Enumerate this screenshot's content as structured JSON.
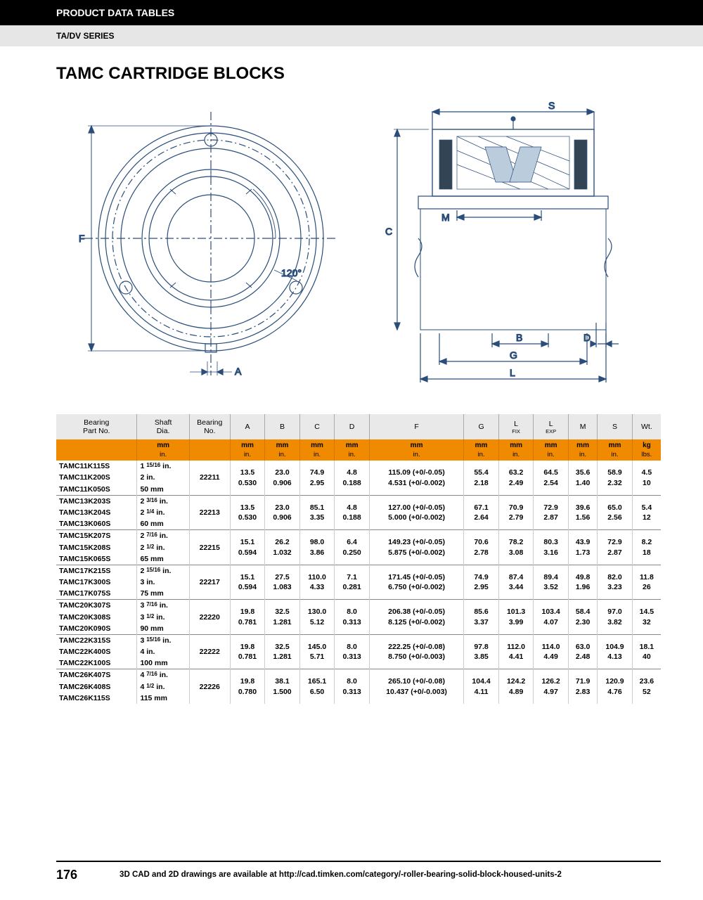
{
  "header": "PRODUCT DATA TABLES",
  "subheader": "TA/DV SERIES",
  "title": "TAMC CARTRIDGE BLOCKS",
  "page_number": "176",
  "footer_text": "3D CAD and 2D drawings are available at http://cad.timken.com/category/-roller-bearing-solid-block-housed-units-2",
  "diagram": {
    "angle": "120°",
    "labels_left": [
      "F",
      "A"
    ],
    "labels_right": [
      "S",
      "M",
      "C",
      "B",
      "D",
      "G",
      "L"
    ],
    "stroke": "#2a4d7a"
  },
  "columns": [
    "Bearing\nPart No.",
    "Shaft\nDia.",
    "Bearing\nNo.",
    "A",
    "B",
    "C",
    "D",
    "F",
    "G",
    "L FIX",
    "L EXP",
    "M",
    "S",
    "Wt."
  ],
  "unit_row": [
    "",
    "mm\nin.",
    "",
    "mm\nin.",
    "mm\nin.",
    "mm\nin.",
    "mm\nin.",
    "mm\nin.",
    "mm\nin.",
    "mm\nin.",
    "mm\nin.",
    "mm\nin.",
    "mm\nin.",
    "kg\nlbs."
  ],
  "groups": [
    {
      "parts": [
        [
          "TAMC11K115S",
          "1 15/16 in."
        ],
        [
          "TAMC11K200S",
          "2 in."
        ],
        [
          "TAMC11K050S",
          "50 mm"
        ]
      ],
      "bearing_no": "22211",
      "vals": [
        "13.5\n0.530",
        "23.0\n0.906",
        "74.9\n2.95",
        "4.8\n0.188",
        "115.09 (+0/-0.05)\n4.531 (+0/-0.002)",
        "55.4\n2.18",
        "63.2\n2.49",
        "64.5\n2.54",
        "35.6\n1.40",
        "58.9\n2.32",
        "4.5\n10"
      ]
    },
    {
      "parts": [
        [
          "TAMC13K203S",
          "2 3/16 in."
        ],
        [
          "TAMC13K204S",
          "2 1/4 in."
        ],
        [
          "TAMC13K060S",
          "60 mm"
        ]
      ],
      "bearing_no": "22213",
      "vals": [
        "13.5\n0.530",
        "23.0\n0.906",
        "85.1\n3.35",
        "4.8\n0.188",
        "127.00 (+0/-0.05)\n5.000 (+0/-0.002)",
        "67.1\n2.64",
        "70.9\n2.79",
        "72.9\n2.87",
        "39.6\n1.56",
        "65.0\n2.56",
        "5.4\n12"
      ]
    },
    {
      "parts": [
        [
          "TAMC15K207S",
          "2 7/16 in."
        ],
        [
          "TAMC15K208S",
          "2 1/2 in."
        ],
        [
          "TAMC15K065S",
          "65 mm"
        ]
      ],
      "bearing_no": "22215",
      "vals": [
        "15.1\n0.594",
        "26.2\n1.032",
        "98.0\n3.86",
        "6.4\n0.250",
        "149.23 (+0/-0.05)\n5.875 (+0/-0.002)",
        "70.6\n2.78",
        "78.2\n3.08",
        "80.3\n3.16",
        "43.9\n1.73",
        "72.9\n2.87",
        "8.2\n18"
      ]
    },
    {
      "parts": [
        [
          "TAMC17K215S",
          "2 15/16 in."
        ],
        [
          "TAMC17K300S",
          "3 in."
        ],
        [
          "TAMC17K075S",
          "75 mm"
        ]
      ],
      "bearing_no": "22217",
      "vals": [
        "15.1\n0.594",
        "27.5\n1.083",
        "110.0\n4.33",
        "7.1\n0.281",
        "171.45 (+0/-0.05)\n6.750 (+0/-0.002)",
        "74.9\n2.95",
        "87.4\n3.44",
        "89.4\n3.52",
        "49.8\n1.96",
        "82.0\n3.23",
        "11.8\n26"
      ]
    },
    {
      "parts": [
        [
          "TAMC20K307S",
          "3 7/16 in."
        ],
        [
          "TAMC20K308S",
          "3 1/2 in."
        ],
        [
          "TAMC20K090S",
          "90 mm"
        ]
      ],
      "bearing_no": "22220",
      "vals": [
        "19.8\n0.781",
        "32.5\n1.281",
        "130.0\n5.12",
        "8.0\n0.313",
        "206.38 (+0/-0.05)\n8.125 (+0/-0.002)",
        "85.6\n3.37",
        "101.3\n3.99",
        "103.4\n4.07",
        "58.4\n2.30",
        "97.0\n3.82",
        "14.5\n32"
      ]
    },
    {
      "parts": [
        [
          "TAMC22K315S",
          "3 15/16 in."
        ],
        [
          "TAMC22K400S",
          "4 in."
        ],
        [
          "TAMC22K100S",
          "100 mm"
        ]
      ],
      "bearing_no": "22222",
      "vals": [
        "19.8\n0.781",
        "32.5\n1.281",
        "145.0\n5.71",
        "8.0\n0.313",
        "222.25 (+0/-0.08)\n8.750 (+0/-0.003)",
        "97.8\n3.85",
        "112.0\n4.41",
        "114.0\n4.49",
        "63.0\n2.48",
        "104.9\n4.13",
        "18.1\n40"
      ]
    },
    {
      "parts": [
        [
          "TAMC26K407S",
          "4 7/16 in."
        ],
        [
          "TAMC26K408S",
          "4 1/2 in."
        ],
        [
          "TAMC26K115S",
          "115 mm"
        ]
      ],
      "bearing_no": "22226",
      "vals": [
        "19.8\n0.780",
        "38.1\n1.500",
        "165.1\n6.50",
        "8.0\n0.313",
        "265.10 (+0/-0.08)\n10.437 (+0/-0.003)",
        "104.4\n4.11",
        "124.2\n4.89",
        "126.2\n4.97",
        "71.9\n2.83",
        "120.9\n4.76",
        "23.6\n52"
      ]
    }
  ]
}
